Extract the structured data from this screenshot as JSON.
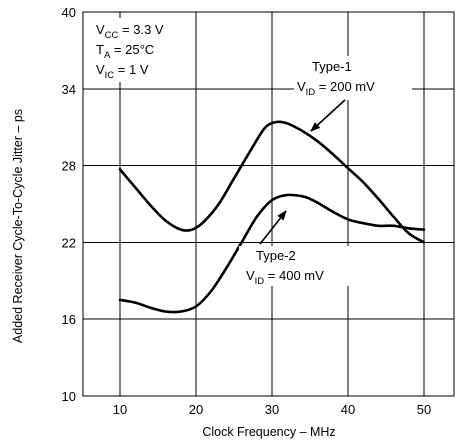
{
  "chart_data": {
    "type": "line",
    "xlabel": "Clock Frequency –  MHz",
    "ylabel": "Added Receiver Cycle-To-Cycle Jitter – ps",
    "xlim": [
      5,
      55
    ],
    "ylim": [
      10,
      40
    ],
    "x_ticks": [
      10,
      20,
      30,
      40,
      50
    ],
    "y_ticks": [
      10,
      16,
      22,
      28,
      34,
      40
    ],
    "grid": true,
    "conditions": [
      {
        "main": "V",
        "sub": "CC",
        "rest": " = 3.3 V"
      },
      {
        "main": "T",
        "sub": "A",
        "rest": " = 25°C"
      },
      {
        "main": "V",
        "sub": "IC",
        "rest": " = 1 V"
      }
    ],
    "series": [
      {
        "name": "Type-1",
        "condition": {
          "main": "V",
          "sub": "ID",
          "rest": " = 200 mV"
        },
        "x": [
          10,
          12,
          14,
          16,
          18,
          19.5,
          21,
          23,
          25,
          27,
          29,
          30.5,
          32,
          34,
          36,
          38,
          40,
          42,
          44,
          46,
          48,
          50
        ],
        "y": [
          27.7,
          26.3,
          24.9,
          23.7,
          23.0,
          23.0,
          23.6,
          25.0,
          27.0,
          29.0,
          30.9,
          31.4,
          31.3,
          30.7,
          29.9,
          28.9,
          27.8,
          26.7,
          25.4,
          24.0,
          22.7,
          22.0
        ]
      },
      {
        "name": "Type-2",
        "condition": {
          "main": "V",
          "sub": "ID",
          "rest": " = 400 mV"
        },
        "x": [
          10,
          12,
          14,
          16,
          18,
          20,
          22,
          24,
          26,
          28,
          30,
          32,
          34,
          35,
          36,
          38,
          40,
          42,
          44,
          46,
          48,
          50
        ],
        "y": [
          17.5,
          17.3,
          16.9,
          16.6,
          16.6,
          17.0,
          18.2,
          20.0,
          22.0,
          24.0,
          25.3,
          25.7,
          25.6,
          25.4,
          25.1,
          24.4,
          23.8,
          23.5,
          23.3,
          23.3,
          23.1,
          23.0
        ]
      }
    ]
  }
}
